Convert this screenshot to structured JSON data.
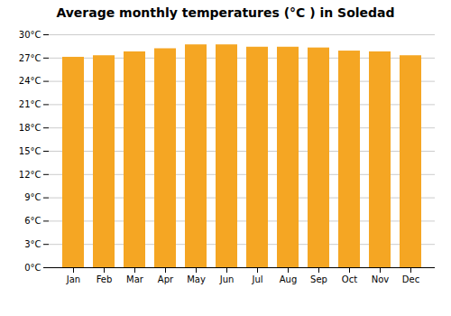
{
  "chart_data": {
    "type": "bar",
    "title": "Average monthly temperatures (°C ) in Soledad",
    "categories": [
      "Jan",
      "Feb",
      "Mar",
      "Apr",
      "May",
      "Jun",
      "Jul",
      "Aug",
      "Sep",
      "Oct",
      "Nov",
      "Dec"
    ],
    "values": [
      27.1,
      27.3,
      27.8,
      28.2,
      28.7,
      28.7,
      28.4,
      28.4,
      28.3,
      27.9,
      27.8,
      27.3
    ],
    "color": "#F5A623",
    "ylim": [
      0,
      30
    ],
    "yticks": [
      {
        "value": 0,
        "label": "0°C"
      },
      {
        "value": 3,
        "label": "3°C"
      },
      {
        "value": 6,
        "label": "6°C"
      },
      {
        "value": 9,
        "label": "9°C"
      },
      {
        "value": 12,
        "label": "12°C"
      },
      {
        "value": 15,
        "label": "15°C"
      },
      {
        "value": 18,
        "label": "18°C"
      },
      {
        "value": 21,
        "label": "21°C"
      },
      {
        "value": 24,
        "label": "24°C"
      },
      {
        "value": 27,
        "label": "27°C"
      },
      {
        "value": 30,
        "label": "30°C"
      }
    ],
    "grid": true
  }
}
